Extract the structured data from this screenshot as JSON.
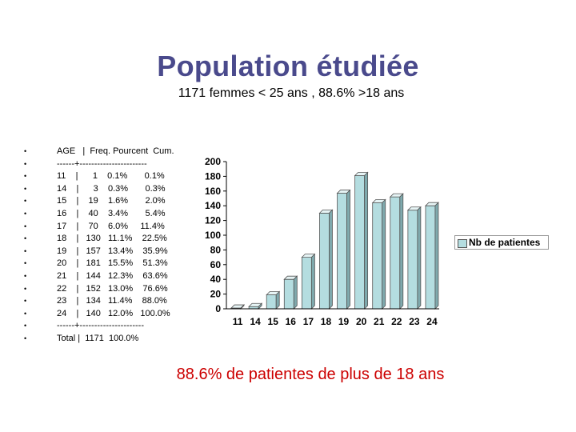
{
  "title": "Population étudiée",
  "subtitle": "1171 femmes < 25 ans , 88.6% >18 ans",
  "table_lines": [
    "AGE   |  Freq. Pourcent  Cum.",
    "------+-----------------------",
    "11    |      1    0.1%       0.1%",
    "14    |      3    0.3%       0.3%",
    "15    |    19    1.6%       2.0%",
    "16    |    40    3.4%       5.4%",
    "17    |    70    6.0%     11.4%",
    "18    |   130   11.1%    22.5%",
    "19    |   157   13.4%    35.9%",
    "20    |   181   15.5%    51.3%",
    "21    |   144   12.3%    63.6%",
    "22    |   152   13.0%    76.6%",
    "23    |   134   11.4%    88.0%",
    "24    |   140   12.0%   100.0%",
    "------+----------------------",
    "Total |  1171  100.0%"
  ],
  "chart_data": {
    "type": "bar",
    "categories": [
      "11",
      "14",
      "15",
      "16",
      "17",
      "18",
      "19",
      "20",
      "21",
      "22",
      "23",
      "24"
    ],
    "series": [
      {
        "name": "Nb de patientes",
        "values": [
          1,
          3,
          19,
          40,
          70,
          130,
          157,
          181,
          144,
          152,
          134,
          140
        ]
      }
    ],
    "ylim": [
      0,
      200
    ],
    "yticks": [
      0,
      20,
      40,
      60,
      80,
      100,
      120,
      140,
      160,
      180,
      200
    ],
    "grid": false,
    "legend": "right",
    "bar_color": "#b4dde0"
  },
  "footnote": "88.6% de patientes de plus de 18 ans"
}
